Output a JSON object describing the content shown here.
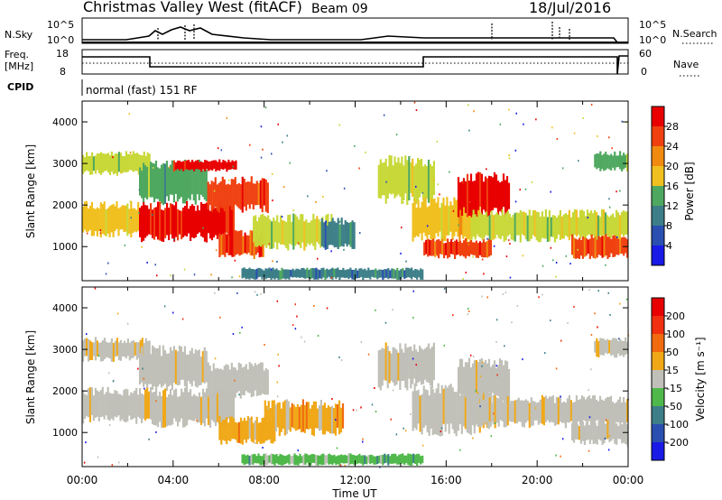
{
  "header": {
    "station": "Christmas Valley West (fitACF)",
    "beam": "Beam 09",
    "date": "18/Jul/2016"
  },
  "top_panels": {
    "nsky_label": "N.Sky",
    "nsky_ticks": [
      "10^5",
      "10^0"
    ],
    "nsearch_label": "N.Search",
    "nsearch_ticks": [
      "10^5",
      "10^0"
    ],
    "freq_label_1": "Freq.",
    "freq_label_2": "[MHz]",
    "freq_ticks": [
      "18",
      "8"
    ],
    "nave_label": "Nave",
    "nave_ticks": [
      "60",
      "0"
    ],
    "cpid_label": "CPID",
    "cpid_value": "normal (fast) 151 RF"
  },
  "colors": {
    "power_scale": [
      "#1a1ae6",
      "#2a4fb0",
      "#3d7f88",
      "#4fa860",
      "#c8d838",
      "#f0c020",
      "#f08a10",
      "#f04010",
      "#e80000"
    ],
    "velocity_scale": [
      "#1a1ae6",
      "#2a4fb0",
      "#3d7f88",
      "#4fb84a",
      "#c0c0b8",
      "#c0c0b8",
      "#f0a818",
      "#f06a10",
      "#f03010",
      "#e80000"
    ],
    "gray": "#c4c4bc",
    "orange": "#f0a818",
    "green": "#4caf40"
  },
  "chart_data": [
    {
      "type": "heatmap",
      "name": "power",
      "ylabel": "Slant Range [km]",
      "xlabel": "Time UT",
      "xlim": [
        0,
        24
      ],
      "ylim": [
        180,
        4500
      ],
      "xticks": [
        "00:00",
        "04:00",
        "08:00",
        "12:00",
        "16:00",
        "20:00",
        "00:00"
      ],
      "yticks": [
        1000,
        2000,
        3000,
        4000
      ],
      "colorbar_label": "Power [dB]",
      "colorbar_ticks": [
        "28",
        "24",
        "20",
        "16",
        "12",
        "8",
        "4"
      ],
      "regions": [
        {
          "x": [
            0.0,
            3.0
          ],
          "y": [
            2700,
            3300
          ],
          "level": 4
        },
        {
          "x": [
            2.5,
            5.5
          ],
          "y": [
            2000,
            3100
          ],
          "level": 3
        },
        {
          "x": [
            0.0,
            2.5
          ],
          "y": [
            1200,
            2100
          ],
          "level": 5
        },
        {
          "x": [
            2.5,
            6.7
          ],
          "y": [
            1100,
            2100
          ],
          "level": 8
        },
        {
          "x": [
            4.0,
            6.8
          ],
          "y": [
            2800,
            3100
          ],
          "level": 8
        },
        {
          "x": [
            5.5,
            8.2
          ],
          "y": [
            1800,
            2700
          ],
          "level": 7
        },
        {
          "x": [
            6.0,
            8.0
          ],
          "y": [
            700,
            1400
          ],
          "level": 7
        },
        {
          "x": [
            7.5,
            11.0
          ],
          "y": [
            900,
            1800
          ],
          "level": 4
        },
        {
          "x": [
            10.5,
            12.0
          ],
          "y": [
            900,
            1700
          ],
          "level": 2
        },
        {
          "x": [
            13.0,
            15.5
          ],
          "y": [
            2000,
            3200
          ],
          "level": 4
        },
        {
          "x": [
            14.5,
            17.5
          ],
          "y": [
            1100,
            2200
          ],
          "level": 5
        },
        {
          "x": [
            16.5,
            18.8
          ],
          "y": [
            1700,
            2800
          ],
          "level": 8
        },
        {
          "x": [
            15.0,
            18.0
          ],
          "y": [
            700,
            1200
          ],
          "level": 7
        },
        {
          "x": [
            17.0,
            24.0
          ],
          "y": [
            1100,
            1900
          ],
          "level": 4
        },
        {
          "x": [
            21.5,
            24.0
          ],
          "y": [
            700,
            1300
          ],
          "level": 7
        },
        {
          "x": [
            22.5,
            24.0
          ],
          "y": [
            2800,
            3300
          ],
          "level": 3
        },
        {
          "x": [
            7.0,
            15.0
          ],
          "y": [
            200,
            500
          ],
          "level": 2
        }
      ]
    },
    {
      "type": "heatmap",
      "name": "velocity",
      "ylabel": "Slant Range [km]",
      "xlabel": "Time UT",
      "xlim": [
        0,
        24
      ],
      "ylim": [
        180,
        4500
      ],
      "xticks": [
        "00:00",
        "04:00",
        "08:00",
        "12:00",
        "16:00",
        "20:00",
        "00:00"
      ],
      "yticks": [
        1000,
        2000,
        3000,
        4000
      ],
      "colorbar_label": "Velocity [m s⁻¹]",
      "colorbar_ticks": [
        "200",
        "100",
        "50",
        "15",
        "-15",
        "-50",
        "-100",
        "-200"
      ],
      "regions": [
        {
          "x": [
            0.0,
            3.0
          ],
          "y": [
            2700,
            3300
          ],
          "level": 5
        },
        {
          "x": [
            2.5,
            5.5
          ],
          "y": [
            2000,
            3100
          ],
          "level": 5
        },
        {
          "x": [
            0.0,
            2.5
          ],
          "y": [
            1200,
            2100
          ],
          "level": 5
        },
        {
          "x": [
            2.5,
            6.7
          ],
          "y": [
            1100,
            2100
          ],
          "level": 5
        },
        {
          "x": [
            5.5,
            8.2
          ],
          "y": [
            1800,
            2700
          ],
          "level": 5
        },
        {
          "x": [
            6.0,
            8.5
          ],
          "y": [
            700,
            1400
          ],
          "level": 6
        },
        {
          "x": [
            8.0,
            11.5
          ],
          "y": [
            900,
            1800
          ],
          "level": 6
        },
        {
          "x": [
            13.0,
            15.5
          ],
          "y": [
            2000,
            3200
          ],
          "level": 5
        },
        {
          "x": [
            14.5,
            18.0
          ],
          "y": [
            900,
            2200
          ],
          "level": 5
        },
        {
          "x": [
            16.5,
            18.8
          ],
          "y": [
            1700,
            2800
          ],
          "level": 5
        },
        {
          "x": [
            17.0,
            24.0
          ],
          "y": [
            1100,
            1900
          ],
          "level": 5
        },
        {
          "x": [
            21.5,
            24.0
          ],
          "y": [
            700,
            1300
          ],
          "level": 5
        },
        {
          "x": [
            22.5,
            24.0
          ],
          "y": [
            2800,
            3300
          ],
          "level": 5
        },
        {
          "x": [
            7.0,
            15.0
          ],
          "y": [
            200,
            500
          ],
          "level": 3
        }
      ]
    }
  ]
}
